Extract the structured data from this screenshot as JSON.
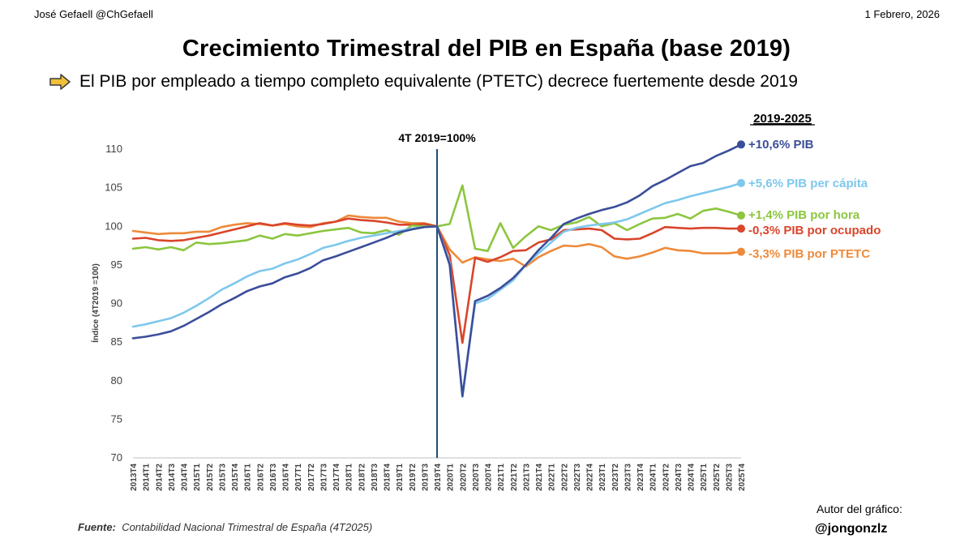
{
  "header": {
    "author": "José Gefaell @ChGefaell",
    "date": "1 Febrero, 2026",
    "title": "Crecimiento Trimestral del PIB en España (base 2019)",
    "subtitle": "El PIB por empleado a tiempo completo equivalente (PTETC) decrece fuertemente desde 2019"
  },
  "footer": {
    "source_label": "Fuente:",
    "source_text": "Contabilidad Nacional Trimestral de España (4T2025)",
    "credit_label": "Autor del gráfico:",
    "credit_handle": "@jongonzlz"
  },
  "colors": {
    "pib": "#3b4e9a",
    "pib_per_capita": "#7ec8ec",
    "pib_por_hora": "#8cc63f",
    "pib_por_ocupado": "#d9452b",
    "pib_por_ptetc": "#ee8a3a",
    "arrow": "#f2c038",
    "marker_line": "#1f4e79"
  },
  "chart_data": {
    "type": "line",
    "ylabel": "Índice (4T2019 =100)",
    "ylim": [
      70,
      110
    ],
    "yticks": [
      70,
      75,
      80,
      85,
      90,
      95,
      100,
      105,
      110
    ],
    "grid": false,
    "reference_line": {
      "x": "2019T4",
      "label": "4T 2019=100%"
    },
    "legend_header": "2019-2025",
    "x": [
      "2013T4",
      "2014T1",
      "2014T2",
      "2014T3",
      "2014T4",
      "2015T1",
      "2015T2",
      "2015T3",
      "2015T4",
      "2016T1",
      "2016T2",
      "2016T3",
      "2016T4",
      "2017T1",
      "2017T2",
      "2017T3",
      "2017T4",
      "2018T1",
      "2018T2",
      "2018T3",
      "2018T4",
      "2019T1",
      "2019T2",
      "2019T3",
      "2019T4",
      "2020T1",
      "2020T2",
      "2020T3",
      "2020T4",
      "2021T1",
      "2021T2",
      "2021T3",
      "2021T4",
      "2022T1",
      "2022T2",
      "2022T3",
      "2022T4",
      "2023T1",
      "2023T2",
      "2023T3",
      "2023T4",
      "2024T1",
      "2024T2",
      "2024T3",
      "2024T4",
      "2025T1",
      "2025T2",
      "2025T3",
      "2025T4"
    ],
    "series": [
      {
        "key": "pib",
        "name": "PIB",
        "legend_label": "+10,6% PIB",
        "values": [
          85.5,
          85.7,
          86.0,
          86.4,
          87.1,
          88.0,
          88.9,
          89.9,
          90.7,
          91.6,
          92.2,
          92.6,
          93.4,
          93.9,
          94.6,
          95.6,
          96.1,
          96.7,
          97.3,
          97.9,
          98.5,
          99.2,
          99.6,
          99.9,
          100.0,
          95.0,
          78.0,
          90.3,
          91.0,
          92.0,
          93.3,
          95.0,
          96.9,
          98.5,
          100.3,
          101.0,
          101.6,
          102.1,
          102.5,
          103.1,
          104.0,
          105.2,
          106.0,
          106.9,
          107.8,
          108.2,
          109.1,
          109.8,
          110.6
        ]
      },
      {
        "key": "pib_per_capita",
        "name": "PIB per cápita",
        "legend_label": "+5,6% PIB per cápita",
        "values": [
          87.0,
          87.3,
          87.7,
          88.1,
          88.8,
          89.7,
          90.7,
          91.8,
          92.6,
          93.5,
          94.2,
          94.5,
          95.2,
          95.7,
          96.4,
          97.2,
          97.6,
          98.1,
          98.5,
          98.8,
          99.1,
          99.4,
          99.7,
          99.9,
          100.0,
          95.3,
          77.9,
          90.0,
          90.6,
          91.8,
          93.0,
          95.0,
          96.5,
          97.9,
          99.3,
          99.8,
          100.1,
          100.3,
          100.5,
          100.9,
          101.6,
          102.3,
          103.0,
          103.4,
          103.9,
          104.3,
          104.7,
          105.1,
          105.6
        ]
      },
      {
        "key": "pib_por_hora",
        "name": "PIB por hora",
        "legend_label": "+1,4% PIB por hora",
        "values": [
          97.1,
          97.3,
          97.0,
          97.3,
          96.9,
          97.9,
          97.7,
          97.8,
          98.0,
          98.2,
          98.8,
          98.4,
          99.0,
          98.8,
          99.1,
          99.4,
          99.6,
          99.8,
          99.2,
          99.1,
          99.5,
          98.9,
          100.1,
          100.0,
          100.0,
          100.3,
          105.3,
          97.1,
          96.8,
          100.4,
          97.2,
          98.7,
          100.0,
          99.5,
          100.2,
          100.5,
          101.2,
          100.0,
          100.4,
          99.5,
          100.3,
          101.0,
          101.1,
          101.6,
          101.0,
          102.0,
          102.3,
          101.9,
          101.4
        ]
      },
      {
        "key": "pib_por_ocupado",
        "name": "PIB por ocupado",
        "legend_label": "-0,3% PIB por ocupado",
        "values": [
          98.4,
          98.5,
          98.2,
          98.1,
          98.2,
          98.5,
          98.8,
          99.2,
          99.6,
          100.0,
          100.4,
          100.1,
          100.4,
          100.2,
          100.1,
          100.3,
          100.6,
          101.0,
          100.8,
          100.7,
          100.5,
          100.2,
          100.2,
          100.3,
          100.0,
          96.3,
          84.9,
          95.9,
          95.4,
          96.0,
          96.8,
          96.9,
          97.9,
          98.3,
          99.5,
          99.6,
          99.7,
          99.5,
          98.4,
          98.3,
          98.4,
          99.1,
          99.9,
          99.8,
          99.7,
          99.8,
          99.8,
          99.7,
          99.7
        ]
      },
      {
        "key": "pib_por_ptetc",
        "name": "PIB por PTETC",
        "legend_label": "-3,3% PIB por PTETC",
        "values": [
          99.4,
          99.2,
          99.0,
          99.1,
          99.1,
          99.3,
          99.3,
          99.9,
          100.2,
          100.4,
          100.3,
          100.1,
          100.3,
          100.0,
          99.9,
          100.4,
          100.6,
          101.4,
          101.2,
          101.1,
          101.1,
          100.6,
          100.4,
          100.4,
          100.0,
          97.0,
          95.3,
          96.0,
          95.7,
          95.5,
          95.8,
          94.8,
          96.0,
          96.8,
          97.5,
          97.4,
          97.7,
          97.3,
          96.1,
          95.8,
          96.1,
          96.6,
          97.2,
          96.9,
          96.8,
          96.5,
          96.5,
          96.5,
          96.7
        ]
      }
    ]
  }
}
